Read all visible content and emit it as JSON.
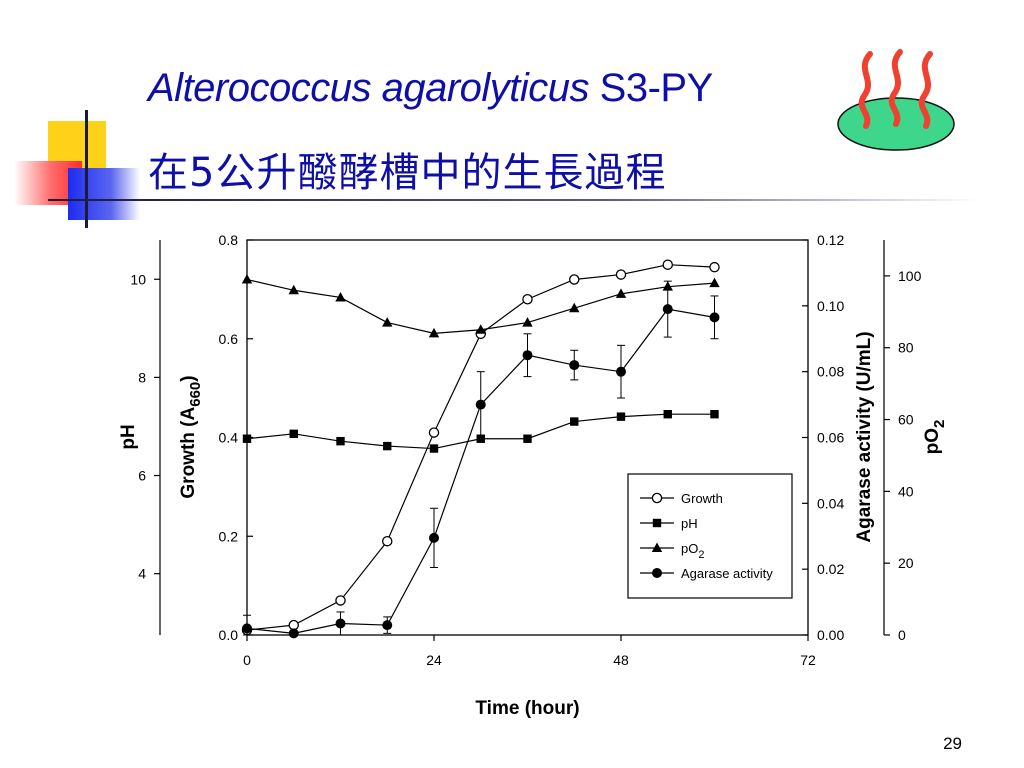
{
  "slide": {
    "title_italic": "Alterococcus agarolyticus",
    "title_rest": " S3-PY",
    "subtitle": "在5公升醱酵槽中的生長過程",
    "page_number": "29",
    "colors": {
      "title": "#0e0ea8",
      "accent_yellow": "#ffd21a",
      "accent_blue": "#2233ee",
      "accent_red": "#ff3c3c",
      "dish_green": "#3ed68a",
      "steam": "#f04030"
    },
    "icons": [
      "steaming-dish-icon"
    ]
  },
  "chart_data": {
    "type": "line",
    "title": "",
    "xlabel": "Time (hour)",
    "x_ticks": [
      0,
      24,
      48,
      72
    ],
    "xlim": [
      0,
      72
    ],
    "axes": {
      "growth": {
        "label": "Growth (A660)",
        "label_main": "Growth (A",
        "label_sub": "660",
        "label_end": ")",
        "lim": [
          0,
          0.8
        ],
        "ticks": [
          "0.0",
          "0.2",
          "0.4",
          "0.6",
          "0.8"
        ]
      },
      "ph": {
        "label": "pH",
        "lim": [
          2.75,
          10.8
        ],
        "ticks": [
          "4",
          "6",
          "8",
          "10"
        ]
      },
      "agarase": {
        "label": "Agarase activity (U/mL)",
        "lim": [
          0,
          0.12
        ],
        "ticks": [
          "0.00",
          "0.02",
          "0.04",
          "0.06",
          "0.08",
          "0.10",
          "0.12"
        ]
      },
      "po2": {
        "label": "pO2",
        "label_main": "pO",
        "label_sub": "2",
        "lim": [
          0,
          110
        ],
        "ticks": [
          "0",
          "20",
          "40",
          "60",
          "80",
          "100"
        ]
      }
    },
    "legend": {
      "position": "lower-right",
      "entries": [
        {
          "label": "Growth",
          "marker": "open-circle"
        },
        {
          "label": "pH",
          "marker": "filled-square"
        },
        {
          "label_main": "pO",
          "label_sub": "2",
          "marker": "filled-triangle"
        },
        {
          "label": "Agarase activity",
          "marker": "filled-circle"
        }
      ]
    },
    "series": [
      {
        "name": "Growth",
        "axis": "growth",
        "marker": "open-circle",
        "x": [
          0,
          6,
          12,
          18,
          24,
          30,
          36,
          42,
          48,
          54,
          60
        ],
        "values": [
          0.01,
          0.02,
          0.07,
          0.19,
          0.41,
          0.61,
          0.68,
          0.72,
          0.73,
          0.75,
          0.745
        ]
      },
      {
        "name": "pH",
        "axis": "ph",
        "marker": "filled-square",
        "x": [
          0,
          6,
          12,
          18,
          24,
          30,
          36,
          42,
          48,
          54,
          60
        ],
        "values": [
          6.75,
          6.85,
          6.7,
          6.6,
          6.55,
          6.75,
          6.75,
          7.1,
          7.2,
          7.25,
          7.25
        ]
      },
      {
        "name": "pO2",
        "axis": "po2",
        "marker": "filled-triangle",
        "x": [
          0,
          6,
          12,
          18,
          24,
          30,
          36,
          42,
          48,
          54,
          60
        ],
        "values": [
          99,
          96,
          94,
          87,
          84,
          85,
          87,
          91,
          95,
          97,
          98
        ]
      },
      {
        "name": "Agarase activity",
        "axis": "agarase",
        "marker": "filled-circle",
        "x": [
          0,
          6,
          12,
          18,
          24,
          30,
          36,
          42,
          48,
          54,
          60
        ],
        "values": [
          0.002,
          0.0005,
          0.0035,
          0.003,
          0.0295,
          0.07,
          0.085,
          0.082,
          0.08,
          0.099,
          0.0965
        ],
        "errors": [
          0.004,
          0.0005,
          0.0035,
          0.0025,
          0.009,
          0.01,
          0.0065,
          0.0045,
          0.008,
          0.0085,
          0.0065
        ]
      }
    ]
  }
}
